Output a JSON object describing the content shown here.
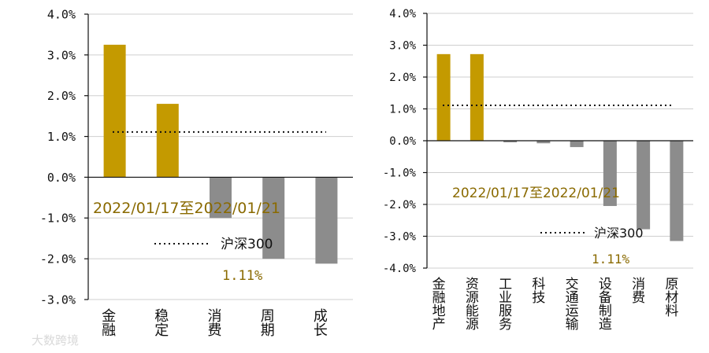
{
  "chart_data": [
    {
      "type": "bar",
      "categories": [
        "金融",
        "稳定",
        "消费",
        "周期",
        "成长"
      ],
      "values": [
        3.25,
        1.8,
        -1.0,
        -2.0,
        -2.12
      ],
      "ylim": [
        -3.0,
        4.0
      ],
      "yticks": [
        "4.0%",
        "3.0%",
        "2.0%",
        "1.0%",
        "0.0%",
        "-1.0%",
        "-2.0%",
        "-3.0%"
      ],
      "ytick_values": [
        4,
        3,
        2,
        1,
        0,
        -1,
        -2,
        -3
      ],
      "period_label": "2022/01/17至2022/01/21",
      "benchmark": {
        "name": "沪深300",
        "value": 1.11,
        "value_label": "1.11%"
      },
      "grid": true,
      "colors": {
        "positive": "#c49a00",
        "negative": "#8c8c8c",
        "benchmark": "#111111"
      }
    },
    {
      "type": "bar",
      "categories": [
        "金融地产",
        "资源能源",
        "工业服务",
        "科技",
        "交通运输",
        "设备制造",
        "消费",
        "原材料"
      ],
      "values": [
        2.72,
        2.72,
        -0.05,
        -0.08,
        -0.2,
        -2.05,
        -2.78,
        -3.15
      ],
      "ylim": [
        -4.0,
        4.0
      ],
      "yticks": [
        "4.0%",
        "3.0%",
        "2.0%",
        "1.0%",
        "0.0%",
        "-1.0%",
        "-2.0%",
        "-3.0%",
        "-4.0%"
      ],
      "ytick_values": [
        4,
        3,
        2,
        1,
        0,
        -1,
        -2,
        -3,
        -4
      ],
      "period_label": "2022/01/17至2022/01/21",
      "benchmark": {
        "name": "沪深300",
        "value": 1.11,
        "value_label": "1.11%"
      },
      "grid": true,
      "colors": {
        "positive": "#c49a00",
        "negative": "#8c8c8c",
        "benchmark": "#111111"
      }
    }
  ],
  "watermark": "大数跨境"
}
